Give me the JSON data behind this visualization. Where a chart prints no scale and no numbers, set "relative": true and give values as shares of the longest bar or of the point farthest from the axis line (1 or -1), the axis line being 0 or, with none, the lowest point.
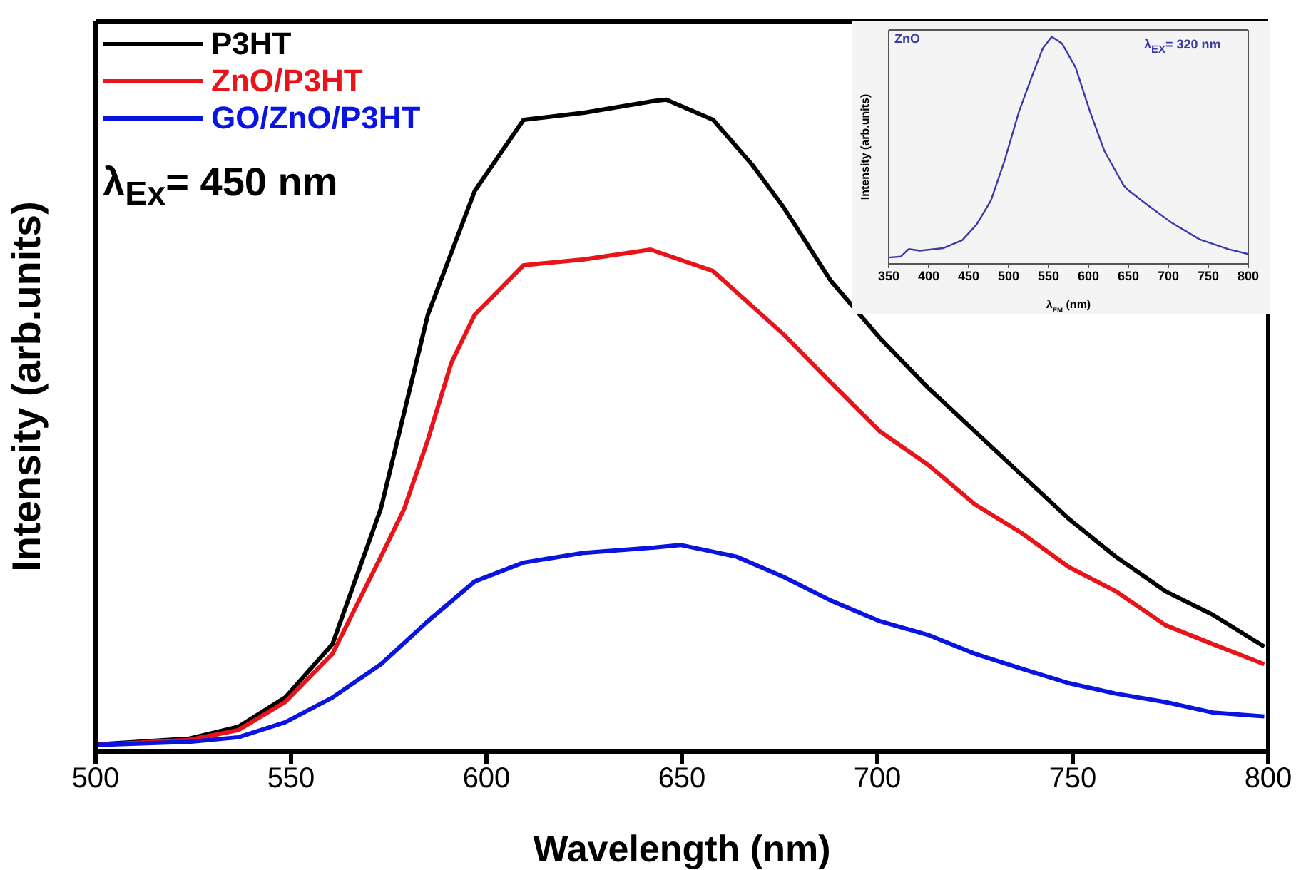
{
  "chart_data": [
    {
      "type": "line",
      "xlabel": "Wavelength (nm)",
      "ylabel": "Intensity (arb.units)",
      "xlim": [
        500,
        800
      ],
      "xticks": [
        500,
        550,
        600,
        650,
        700,
        750,
        800
      ],
      "relative": true,
      "legend": "top left",
      "annotations": [
        "λ$_{Ex}$= 450 nm"
      ],
      "series": [
        {
          "name": "P3HT",
          "color": "#000000",
          "x": [
            500,
            524,
            536.5,
            548.5,
            560.6,
            573,
            585,
            597,
            609.5,
            625,
            643,
            646,
            658,
            668,
            676,
            688,
            700.7,
            713,
            725,
            737,
            749,
            761,
            773.7,
            785.8,
            799
          ],
          "values": [
            0.011,
            0.02,
            0.038,
            0.083,
            0.165,
            0.373,
            0.67,
            0.86,
            0.969,
            0.98,
            0.998,
            1,
            0.969,
            0.9,
            0.835,
            0.723,
            0.634,
            0.558,
            0.491,
            0.424,
            0.357,
            0.299,
            0.246,
            0.21,
            0.161
          ]
        },
        {
          "name": "ZnO/P3HT",
          "color": "#e8141a",
          "x": [
            500,
            524,
            536.5,
            548.5,
            560.6,
            573,
            579,
            585,
            591,
            597,
            609.5,
            625,
            642,
            658,
            676,
            688,
            700.7,
            713,
            725,
            737,
            749,
            761,
            773.7,
            785.8,
            799
          ],
          "values": [
            0.01,
            0.018,
            0.033,
            0.076,
            0.15,
            0.299,
            0.373,
            0.478,
            0.596,
            0.67,
            0.746,
            0.755,
            0.77,
            0.737,
            0.64,
            0.567,
            0.491,
            0.44,
            0.379,
            0.335,
            0.283,
            0.246,
            0.194,
            0.165,
            0.134
          ]
        },
        {
          "name": "GO/ZnO/P3HT",
          "color": "#0a14e0",
          "x": [
            500,
            524,
            536.5,
            548.5,
            560.6,
            573,
            585,
            597,
            609.5,
            625,
            643,
            649.6,
            664,
            676,
            688,
            700.7,
            713,
            725,
            737,
            749,
            761,
            773.7,
            785.8,
            799
          ],
          "values": [
            0.01,
            0.015,
            0.022,
            0.045,
            0.083,
            0.134,
            0.2,
            0.261,
            0.29,
            0.305,
            0.313,
            0.317,
            0.299,
            0.268,
            0.232,
            0.2,
            0.179,
            0.15,
            0.127,
            0.105,
            0.089,
            0.076,
            0.06,
            0.054
          ]
        }
      ]
    },
    {
      "type": "line",
      "xlabel": "λ$_{EM}$ (nm)",
      "ylabel": "Intensity (arb.units)",
      "xlim": [
        350,
        800
      ],
      "xticks": [
        350,
        400,
        450,
        500,
        550,
        600,
        650,
        700,
        750,
        800
      ],
      "relative": true,
      "annotations": [
        "ZnO",
        "λ$_{EX}$= 320 nm"
      ],
      "series": [
        {
          "color": "#3a3aa8",
          "x": [
            350,
            365,
            375,
            389,
            418,
            442,
            460,
            478,
            495,
            513,
            531,
            543,
            554,
            567,
            584,
            602,
            620,
            644,
            650,
            674,
            703,
            739,
            775,
            800
          ],
          "values": [
            0.028,
            0.032,
            0.065,
            0.058,
            0.069,
            0.104,
            0.173,
            0.28,
            0.454,
            0.67,
            0.842,
            0.95,
            1,
            0.97,
            0.864,
            0.67,
            0.497,
            0.346,
            0.324,
            0.259,
            0.184,
            0.108,
            0.065,
            0.043
          ]
        }
      ]
    }
  ]
}
